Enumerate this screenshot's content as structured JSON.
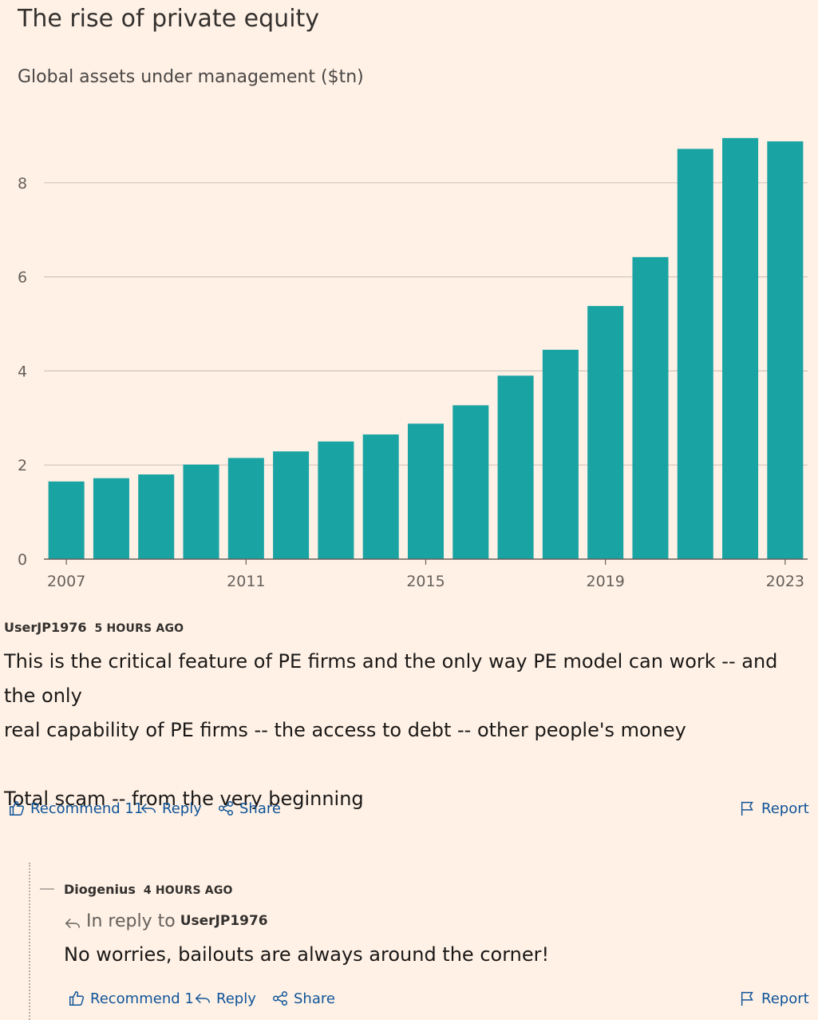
{
  "colors": {
    "bar": "#1aa3a3",
    "grid": "#cfc6bd",
    "link": "#0f5499",
    "background": "#fff1e5"
  },
  "chart_data": {
    "type": "bar",
    "title": "The rise of private equity",
    "subtitle": "Global assets under management ($tn)",
    "categories": [
      "2007",
      "2008",
      "2009",
      "2010",
      "2011",
      "2012",
      "2013",
      "2014",
      "2015",
      "2016",
      "2017",
      "2018",
      "2019",
      "2020",
      "2021",
      "2022",
      "2023"
    ],
    "values": [
      1.65,
      1.72,
      1.8,
      2.01,
      2.15,
      2.29,
      2.5,
      2.65,
      2.88,
      3.27,
      3.9,
      4.45,
      5.38,
      6.42,
      8.72,
      8.95,
      8.88
    ],
    "x_tick_labels": [
      "2007",
      "2011",
      "2015",
      "2019",
      "2023"
    ],
    "y_ticks": [
      0,
      2,
      4,
      6,
      8
    ],
    "ylim": [
      0,
      9.5
    ],
    "xlabel": "",
    "ylabel": ""
  },
  "comments": [
    {
      "author": "UserJP1976",
      "time": "5 HOURS AGO",
      "body_lines": [
        "This is the critical feature of PE firms and the only way PE model can work -- and the only",
        "real capability of PE firms -- the access to debt -- other people's money",
        "",
        "Total scam -- from the very beginning"
      ],
      "actions": {
        "recommend": "Recommend 11",
        "reply": "Reply",
        "share": "Share",
        "report": "Report"
      }
    },
    {
      "author": "Diogenius",
      "time": "4 HOURS AGO",
      "in_reply_label": "In reply to",
      "in_reply_user": "UserJP1976",
      "body": "No worries, bailouts are always around the corner!",
      "actions": {
        "recommend": "Recommend 1",
        "reply": "Reply",
        "share": "Share",
        "report": "Report"
      }
    }
  ],
  "icons": [
    "thumbs-up-icon",
    "reply-arrow-icon",
    "share-icon",
    "flag-icon"
  ]
}
